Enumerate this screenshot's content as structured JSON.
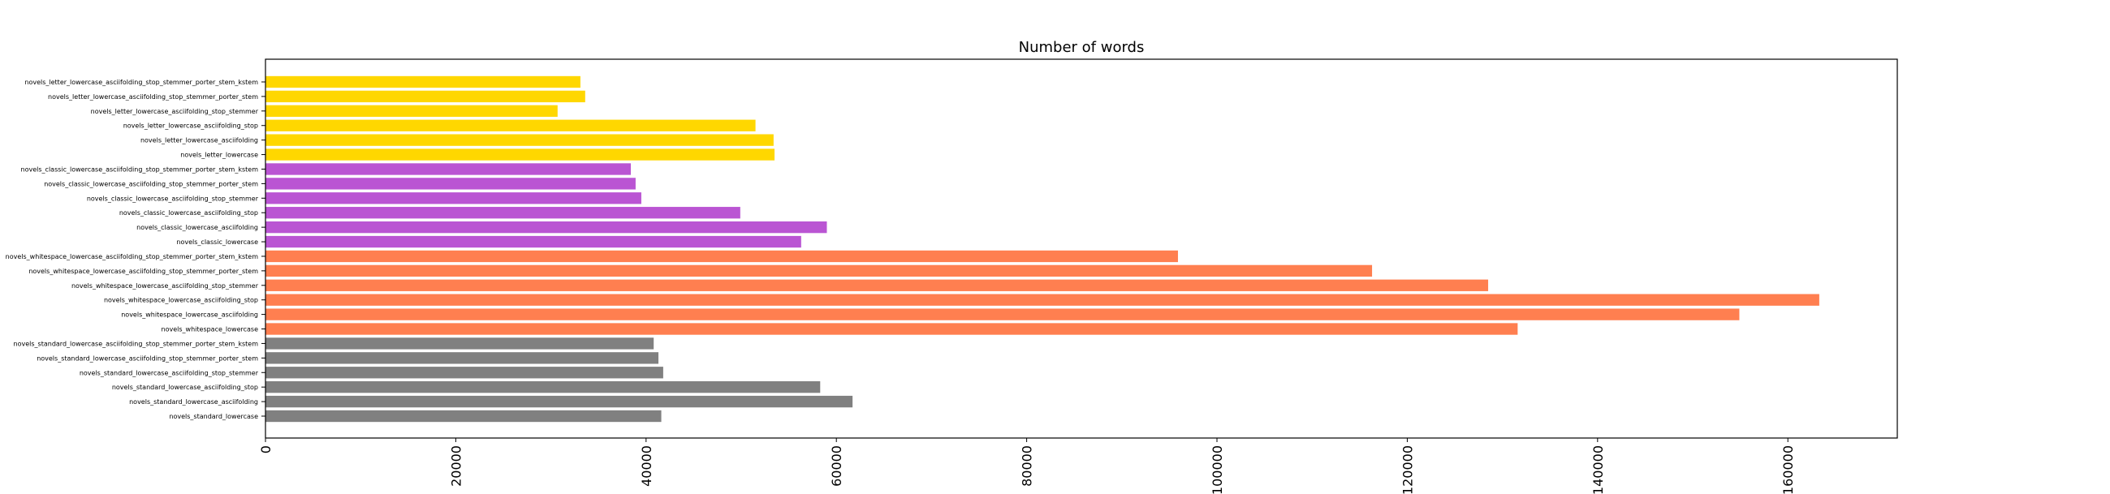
{
  "chart_data": {
    "type": "bar",
    "orientation": "horizontal",
    "title": "Number of words",
    "xlabel": "",
    "ylabel": "",
    "xlim": [
      0,
      171500
    ],
    "x_ticks": [
      0,
      20000,
      40000,
      60000,
      80000,
      100000,
      120000,
      140000,
      160000
    ],
    "x_tick_labels": [
      "0",
      "20000",
      "40000",
      "60000",
      "80000",
      "100000",
      "120000",
      "140000",
      "160000"
    ],
    "grid": false,
    "legend": false,
    "categories": [
      "novels_standard_lowercase",
      "novels_standard_lowercase_asciifolding",
      "novels_standard_lowercase_asciifolding_stop",
      "novels_standard_lowercase_asciifolding_stop_stemmer",
      "novels_standard_lowercase_asciifolding_stop_stemmer_porter_stem",
      "novels_standard_lowercase_asciifolding_stop_stemmer_porter_stem_kstem",
      "novels_whitespace_lowercase",
      "novels_whitespace_lowercase_asciifolding",
      "novels_whitespace_lowercase_asciifolding_stop",
      "novels_whitespace_lowercase_asciifolding_stop_stemmer",
      "novels_whitespace_lowercase_asciifolding_stop_stemmer_porter_stem",
      "novels_whitespace_lowercase_asciifolding_stop_stemmer_porter_stem_kstem",
      "novels_classic_lowercase",
      "novels_classic_lowercase_asciifolding",
      "novels_classic_lowercase_asciifolding_stop",
      "novels_classic_lowercase_asciifolding_stop_stemmer",
      "novels_classic_lowercase_asciifolding_stop_stemmer_porter_stem",
      "novels_classic_lowercase_asciifolding_stop_stemmer_porter_stem_kstem",
      "novels_letter_lowercase",
      "novels_letter_lowercase_asciifolding",
      "novels_letter_lowercase_asciifolding_stop",
      "novels_letter_lowercase_asciifolding_stop_stemmer",
      "novels_letter_lowercase_asciifolding_stop_stemmer_porter_stem",
      "novels_letter_lowercase_asciifolding_stop_stemmer_porter_stem_kstem"
    ],
    "values": [
      41600,
      61700,
      58300,
      41800,
      41300,
      40800,
      131600,
      154900,
      163300,
      128500,
      116300,
      95900,
      56300,
      59000,
      49900,
      39500,
      38900,
      38400,
      53500,
      53400,
      51500,
      30700,
      33600,
      33100
    ],
    "colors": [
      "#808080",
      "#808080",
      "#808080",
      "#808080",
      "#808080",
      "#808080",
      "#ff7f50",
      "#ff7f50",
      "#ff7f50",
      "#ff7f50",
      "#ff7f50",
      "#ff7f50",
      "#ba55d3",
      "#ba55d3",
      "#ba55d3",
      "#ba55d3",
      "#ba55d3",
      "#ba55d3",
      "#ffd700",
      "#ffd700",
      "#ffd700",
      "#ffd700",
      "#ffd700",
      "#ffd700"
    ]
  }
}
